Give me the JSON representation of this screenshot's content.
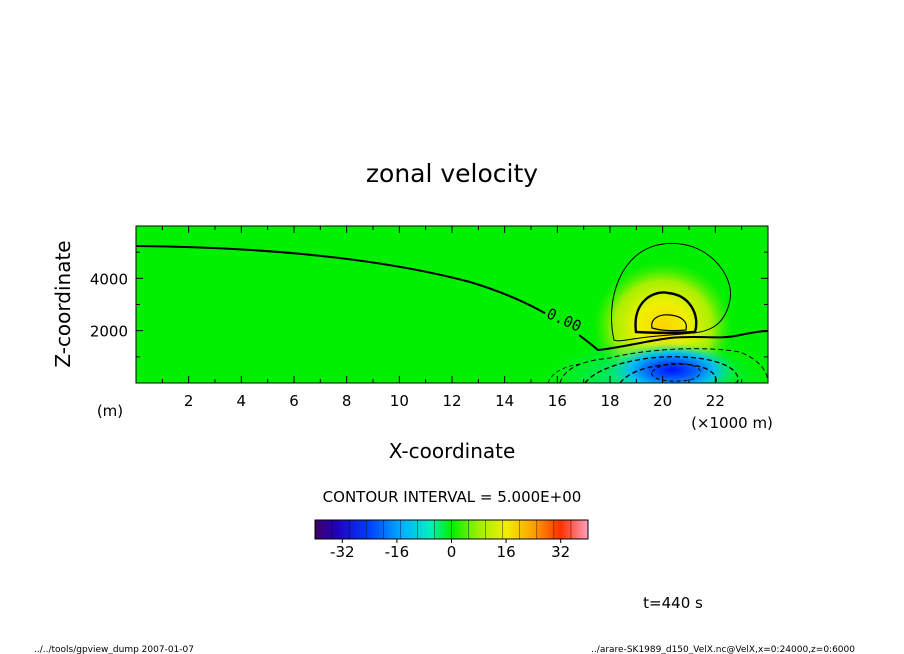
{
  "chart_data": {
    "type": "heatmap",
    "title": "zonal velocity",
    "xlabel": "X-coordinate",
    "ylabel": "Z-coordinate",
    "x_unit": "(×1000 m)",
    "y_unit": "(m)",
    "xlim": [
      0,
      24
    ],
    "ylim": [
      0,
      6000
    ],
    "x_ticks": [
      "2",
      "4",
      "6",
      "8",
      "10",
      "12",
      "14",
      "16",
      "18",
      "20",
      "22"
    ],
    "y_ticks": [
      "2000",
      "4000"
    ],
    "contour_label": "0.00",
    "contour_interval_text": "CONTOUR INTERVAL = 5.000E+00",
    "colorbar": {
      "range": [
        -40,
        40
      ],
      "ticks": [
        "-32",
        "-16",
        "0",
        "16",
        "32"
      ]
    },
    "time_label": "t=440 s",
    "footer_left": "../../tools/gpview_dump  2007-01-07",
    "footer_right": "../arare-SK1989_d150_VelX.nc@VelX,x=0:24000,z=0:6000"
  }
}
